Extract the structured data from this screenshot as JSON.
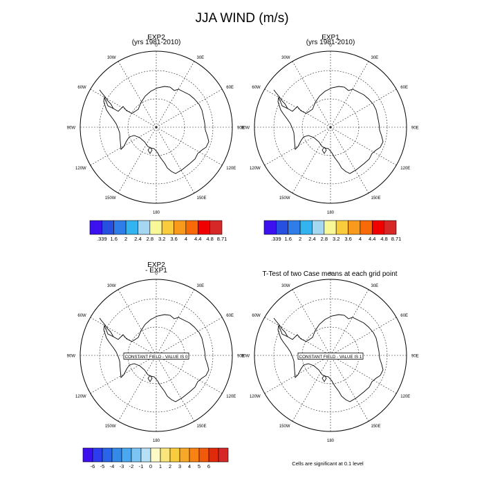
{
  "main_title": "JJA WIND (m/s)",
  "panels": [
    {
      "id": "exp2",
      "title_lines": [
        "EXP2",
        "(yrs 1981-2010)"
      ],
      "overlay": "",
      "lon_labels": [
        "0",
        "30E",
        "60E",
        "90E",
        "120E",
        "150E",
        "180",
        "150W",
        "120W",
        "90W",
        "60W",
        "30W"
      ]
    },
    {
      "id": "exp1",
      "title_lines": [
        "EXP1",
        "(yrs 1981-2010)"
      ],
      "overlay": "",
      "lon_labels": [
        "0",
        "30E",
        "60E",
        "90E",
        "120E",
        "150E",
        "180",
        "150W",
        "120W",
        "90W",
        "60W",
        "30W"
      ]
    },
    {
      "id": "diff",
      "title_lines": [
        "EXP2",
        "- EXP1"
      ],
      "overlay": "CONSTANT FIELD - VALUE IS 0",
      "lon_labels": [
        "0",
        "30E",
        "60E",
        "90E",
        "120E",
        "150E",
        "180",
        "150W",
        "120W",
        "90W",
        "60W",
        "30W"
      ]
    },
    {
      "id": "ttest",
      "title_lines": [
        "T-Test of two Case means at each grid point"
      ],
      "overlay": "CONSTANT FIELD - VALUE IS 1",
      "lon_labels": [
        "0",
        "30E",
        "60E",
        "90E",
        "120E",
        "150E",
        "180",
        "150W",
        "120W",
        "90W",
        "60W",
        "30W"
      ]
    }
  ],
  "colorbars": {
    "exp2": {
      "labels": [
        ".339",
        "1.6",
        "2",
        "2.4",
        "2.8",
        "3.2",
        "3.6",
        "4",
        "4.4",
        "4.8",
        "8.71"
      ],
      "colors": [
        "#3d10f0",
        "#2850e0",
        "#2f7de8",
        "#33b4f0",
        "#a5d8f0",
        "#f8f898",
        "#f8cc3c",
        "#f89a1c",
        "#f86a08",
        "#f00000",
        "#d72828"
      ]
    },
    "exp1": {
      "labels": [
        ".339",
        "1.6",
        "2",
        "2.4",
        "2.8",
        "3.2",
        "3.6",
        "4",
        "4.4",
        "4.8",
        "8.71"
      ],
      "colors": [
        "#3d10f0",
        "#2850e0",
        "#2f7de8",
        "#33b4f0",
        "#a5d8f0",
        "#f8f898",
        "#f8cc3c",
        "#f89a1c",
        "#f86a08",
        "#f00000",
        "#d72828"
      ]
    },
    "diff": {
      "labels": [
        "-6",
        "-5",
        "-4",
        "-3",
        "-2",
        "-1",
        "0",
        "1",
        "2",
        "3",
        "4",
        "5",
        "6"
      ],
      "colors": [
        "#3d10f0",
        "#2e3cf0",
        "#2a64e8",
        "#3589e8",
        "#4aa8f0",
        "#7cc4f4",
        "#b6e0f8",
        "#fdfac8",
        "#f8e67c",
        "#f8cc3c",
        "#f8a828",
        "#f88214",
        "#f05a0a",
        "#e02a0a",
        "#d72828"
      ]
    }
  },
  "footnote": "Cells are significant at 0.1 level"
}
